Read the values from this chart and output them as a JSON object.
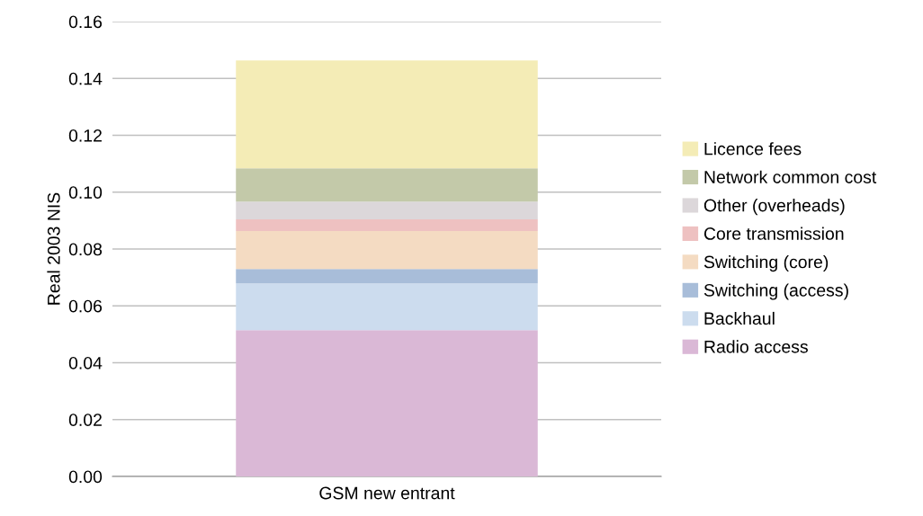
{
  "chart_data": {
    "type": "bar",
    "stacked": true,
    "ylabel": "Real 2003 NIS",
    "categories": [
      "GSM new entrant"
    ],
    "series": [
      {
        "name": "Radio access",
        "color": "#dab8d6",
        "values": [
          0.0515
        ]
      },
      {
        "name": "Backhaul",
        "color": "#ccdcee",
        "values": [
          0.0164
        ]
      },
      {
        "name": "Switching (access)",
        "color": "#a8bdd9",
        "values": [
          0.0051
        ]
      },
      {
        "name": "Switching (core)",
        "color": "#f4dbc2",
        "values": [
          0.0133
        ]
      },
      {
        "name": "Core transmission",
        "color": "#eec1c1",
        "values": [
          0.0041
        ]
      },
      {
        "name": "Other (overheads)",
        "color": "#dcd7da",
        "values": [
          0.0063
        ]
      },
      {
        "name": "Network common cost",
        "color": "#c3c9a9",
        "values": [
          0.0117
        ]
      },
      {
        "name": "Licence fees",
        "color": "#f4ecb6",
        "values": [
          0.0379
        ]
      }
    ],
    "ylim": [
      0,
      0.16
    ],
    "yticks": [
      {
        "value": 0,
        "label": "0.00"
      },
      {
        "value": 0.02,
        "label": "0.02"
      },
      {
        "value": 0.04,
        "label": "0.04"
      },
      {
        "value": 0.06,
        "label": "0.06"
      },
      {
        "value": 0.08,
        "label": "0.08"
      },
      {
        "value": 0.1,
        "label": "0.10"
      },
      {
        "value": 0.12,
        "label": "0.12"
      },
      {
        "value": 0.14,
        "label": "0.14"
      },
      {
        "value": 0.16,
        "label": "0.16"
      }
    ],
    "grid": "y",
    "legend": "right"
  }
}
